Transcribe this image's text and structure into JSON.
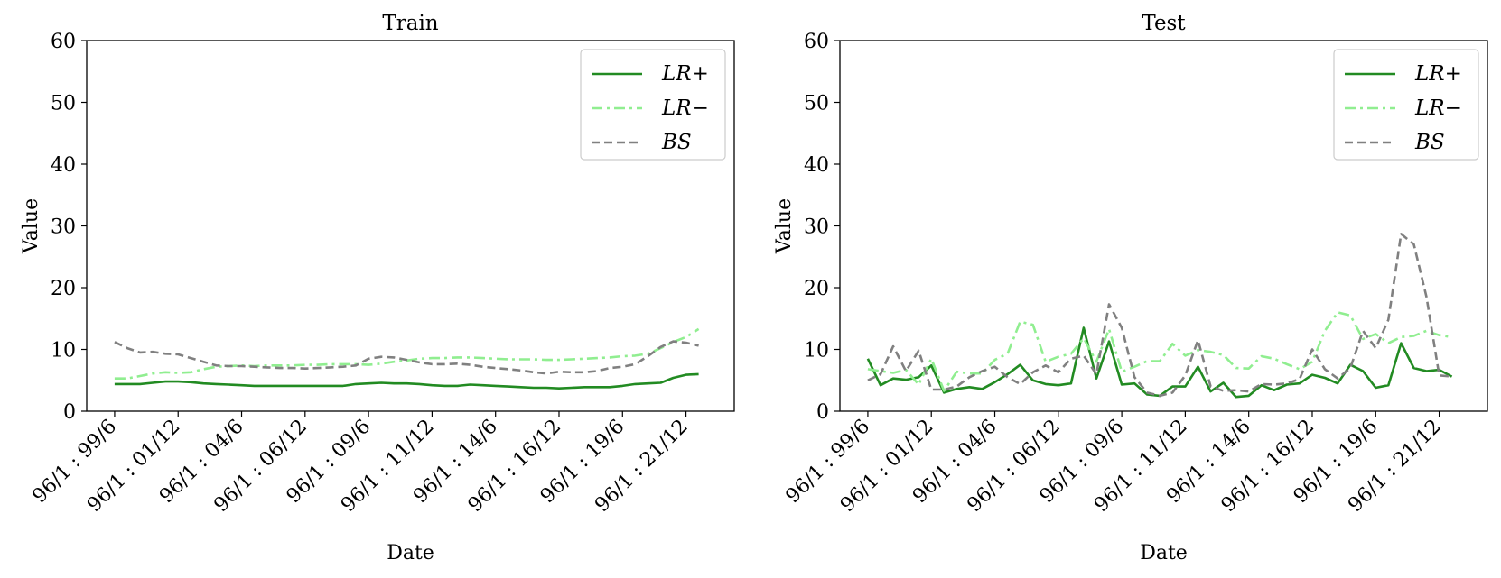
{
  "chart_data": [
    {
      "type": "line",
      "title": "Train",
      "xlabel": "Date",
      "ylabel": "Value",
      "ylim": [
        0,
        60
      ],
      "yticks": [
        0,
        10,
        20,
        30,
        40,
        50,
        60
      ],
      "x_range": [
        -2.2,
        48.8
      ],
      "x": [
        0,
        1,
        2,
        3,
        4,
        5,
        6,
        7,
        8,
        9,
        10,
        11,
        12,
        13,
        14,
        15,
        16,
        17,
        18,
        19,
        20,
        21,
        22,
        23,
        24,
        25,
        26,
        27,
        28,
        29,
        30,
        31,
        32,
        33,
        34,
        35,
        36,
        37,
        38,
        39,
        40,
        41,
        42,
        43,
        44,
        45,
        46
      ],
      "xtick_positions": [
        0,
        5,
        10,
        15,
        20,
        25,
        30,
        35,
        40,
        45
      ],
      "xtick_labels": [
        "96/1 : 99/6",
        "96/1 : 01/12",
        "96/1 : 04/6",
        "96/1 : 06/12",
        "96/1 : 09/6",
        "96/1 : 11/12",
        "96/1 : 14/6",
        "96/1 : 16/12",
        "96/1 : 19/6",
        "96/1 : 21/12"
      ],
      "legend_position": "top-right",
      "series": [
        {
          "name": "LR+",
          "color": "#228b22",
          "dash": "solid",
          "values": [
            4.4,
            4.4,
            4.4,
            4.6,
            4.8,
            4.8,
            4.7,
            4.5,
            4.4,
            4.3,
            4.2,
            4.1,
            4.1,
            4.1,
            4.1,
            4.1,
            4.1,
            4.1,
            4.1,
            4.4,
            4.5,
            4.6,
            4.5,
            4.5,
            4.4,
            4.2,
            4.1,
            4.1,
            4.3,
            4.2,
            4.1,
            4.0,
            3.9,
            3.8,
            3.8,
            3.7,
            3.8,
            3.9,
            3.9,
            3.9,
            4.1,
            4.4,
            4.5,
            4.6,
            5.4,
            5.9,
            6.0
          ]
        },
        {
          "name": "LR−",
          "color": "#90ee90",
          "dash": "dashdot",
          "values": [
            5.3,
            5.3,
            5.7,
            6.1,
            6.3,
            6.2,
            6.3,
            6.8,
            7.2,
            7.3,
            7.4,
            7.3,
            7.4,
            7.4,
            7.4,
            7.5,
            7.5,
            7.6,
            7.6,
            7.6,
            7.5,
            7.7,
            8.0,
            8.2,
            8.5,
            8.6,
            8.6,
            8.7,
            8.7,
            8.6,
            8.5,
            8.4,
            8.4,
            8.4,
            8.3,
            8.3,
            8.4,
            8.5,
            8.6,
            8.7,
            8.9,
            9.0,
            9.3,
            10.2,
            11.2,
            12.0,
            13.3
          ]
        },
        {
          "name": "BS",
          "color": "#808080",
          "dash": "dashed",
          "values": [
            11.2,
            10.2,
            9.5,
            9.6,
            9.3,
            9.2,
            8.6,
            8.0,
            7.4,
            7.3,
            7.3,
            7.2,
            7.1,
            7.0,
            7.0,
            6.9,
            7.0,
            7.1,
            7.2,
            7.4,
            8.5,
            8.8,
            8.7,
            8.3,
            7.9,
            7.6,
            7.6,
            7.7,
            7.5,
            7.2,
            7.0,
            6.8,
            6.6,
            6.3,
            6.1,
            6.4,
            6.3,
            6.3,
            6.5,
            7.0,
            7.2,
            7.6,
            8.9,
            10.4,
            11.3,
            11.1,
            10.6
          ]
        }
      ]
    },
    {
      "type": "line",
      "title": "Test",
      "xlabel": "Date",
      "ylabel": "Value",
      "ylim": [
        0,
        60
      ],
      "yticks": [
        0,
        10,
        20,
        30,
        40,
        50,
        60
      ],
      "x_range": [
        -2.2,
        48.8
      ],
      "x": [
        0,
        1,
        2,
        3,
        4,
        5,
        6,
        7,
        8,
        9,
        10,
        11,
        12,
        13,
        14,
        15,
        16,
        17,
        18,
        19,
        20,
        21,
        22,
        23,
        24,
        25,
        26,
        27,
        28,
        29,
        30,
        31,
        32,
        33,
        34,
        35,
        36,
        37,
        38,
        39,
        40,
        41,
        42,
        43,
        44,
        45,
        46
      ],
      "xtick_positions": [
        0,
        5,
        10,
        15,
        20,
        25,
        30,
        35,
        40,
        45
      ],
      "xtick_labels": [
        "96/1 : 99/6",
        "96/1 : 01/12",
        "96/1 : 04/6",
        "96/1 : 06/12",
        "96/1 : 09/6",
        "96/1 : 11/12",
        "96/1 : 14/6",
        "96/1 : 16/12",
        "96/1 : 19/6",
        "96/1 : 21/12"
      ],
      "legend_position": "top-right",
      "series": [
        {
          "name": "LR+",
          "color": "#228b22",
          "dash": "solid",
          "values": [
            8.5,
            4.2,
            5.3,
            5.1,
            5.5,
            7.4,
            3.0,
            3.6,
            3.9,
            3.6,
            4.7,
            6.0,
            7.5,
            5.0,
            4.4,
            4.2,
            4.5,
            13.5,
            5.3,
            11.3,
            4.3,
            4.5,
            2.7,
            2.5,
            4.0,
            4.0,
            7.2,
            3.2,
            4.6,
            2.3,
            2.5,
            4.2,
            3.4,
            4.3,
            4.5,
            5.9,
            5.4,
            4.5,
            7.5,
            6.5,
            3.8,
            4.2,
            11.0,
            7.0,
            6.5,
            6.7,
            5.6
          ]
        },
        {
          "name": "LR−",
          "color": "#90ee90",
          "dash": "dashdot",
          "values": [
            6.8,
            6.5,
            6.2,
            6.7,
            4.3,
            8.5,
            3.3,
            6.4,
            6.1,
            6.1,
            8.3,
            9.3,
            14.5,
            14.0,
            8.0,
            8.8,
            9.3,
            11.8,
            8.0,
            13.3,
            6.4,
            7.2,
            8.1,
            8.1,
            10.9,
            9.0,
            9.9,
            9.6,
            9.1,
            7.0,
            6.9,
            8.9,
            8.5,
            7.6,
            6.8,
            8.0,
            13.0,
            16.0,
            15.5,
            11.7,
            12.5,
            11.0,
            12.0,
            12.2,
            13.0,
            12.3,
            12.0
          ]
        },
        {
          "name": "BS",
          "color": "#808080",
          "dash": "dashed",
          "values": [
            5.0,
            6.0,
            10.5,
            6.5,
            9.8,
            3.5,
            3.5,
            4.0,
            5.5,
            6.5,
            7.2,
            5.5,
            4.4,
            6.3,
            7.4,
            6.3,
            8.5,
            9.0,
            6.0,
            17.3,
            13.5,
            5.5,
            3.0,
            2.5,
            3.0,
            5.8,
            11.5,
            4.0,
            3.3,
            3.4,
            3.2,
            4.4,
            4.3,
            4.5,
            5.2,
            10.0,
            6.8,
            5.3,
            7.0,
            13.0,
            10.2,
            14.8,
            28.7,
            27.0,
            18.5,
            5.8,
            5.6
          ]
        }
      ]
    }
  ]
}
